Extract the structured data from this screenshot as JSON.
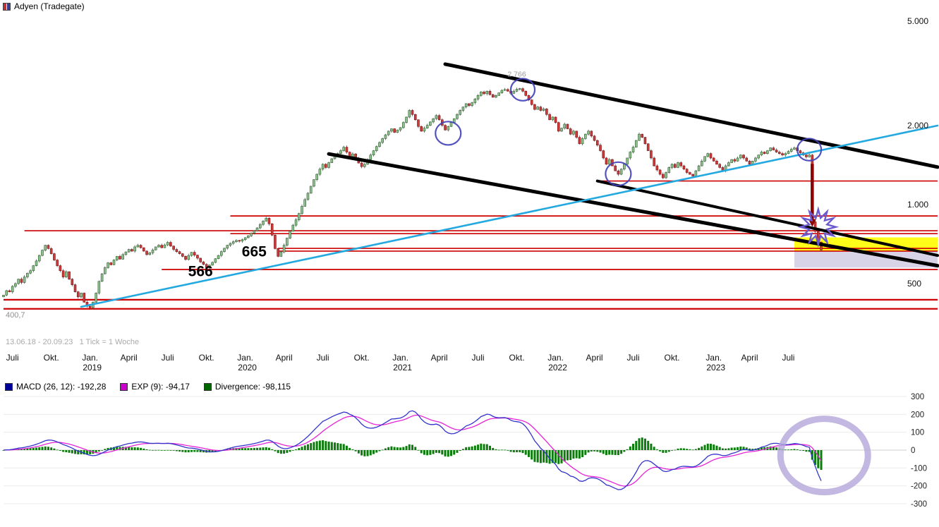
{
  "header": {
    "title": "Adyen (Tradegate)"
  },
  "price_chart": {
    "info_text": "13.06.18 - 20.09.23   1 Tick = 1 Woche",
    "marked_price_label": "400,7"
  },
  "chart_data": [
    {
      "type": "candlestick",
      "title": "Adyen (Tradegate)",
      "period": "13.06.18 - 20.09.23",
      "interval": "1 Tick = 1 Woche",
      "x_unit": "week_index_from_2018-06-13",
      "y_scale": "log",
      "y_ticks": [
        {
          "label": "5.000",
          "price": 5000
        },
        {
          "label": "2.000",
          "price": 2000
        },
        {
          "label": "1.000",
          "price": 1000
        },
        {
          "label": "500",
          "price": 500
        }
      ],
      "x_ticks": [
        {
          "label": "Juli",
          "week": 3
        },
        {
          "label": "Okt.",
          "week": 16
        },
        {
          "label": "Jan.",
          "week": 29,
          "year": "2019"
        },
        {
          "label": "April",
          "week": 42
        },
        {
          "label": "Juli",
          "week": 55
        },
        {
          "label": "Okt.",
          "week": 68
        },
        {
          "label": "Jan.",
          "week": 81,
          "year": "2020"
        },
        {
          "label": "April",
          "week": 94
        },
        {
          "label": "Juli",
          "week": 107
        },
        {
          "label": "Okt.",
          "week": 120
        },
        {
          "label": "Jan.",
          "week": 133,
          "year": "2021"
        },
        {
          "label": "April",
          "week": 146
        },
        {
          "label": "Juli",
          "week": 159
        },
        {
          "label": "Okt.",
          "week": 172
        },
        {
          "label": "Jan.",
          "week": 185,
          "year": "2022"
        },
        {
          "label": "April",
          "week": 198
        },
        {
          "label": "Juli",
          "week": 211
        },
        {
          "label": "Okt.",
          "week": 224
        },
        {
          "label": "Jan.",
          "week": 238,
          "year": "2023"
        },
        {
          "label": "April",
          "week": 250
        },
        {
          "label": "Juli",
          "week": 263
        }
      ],
      "weekly_closes": [
        452,
        470,
        465,
        488,
        500,
        520,
        505,
        530,
        548,
        560,
        585,
        610,
        640,
        670,
        700,
        680,
        650,
        615,
        585,
        560,
        530,
        555,
        520,
        495,
        465,
        445,
        460,
        425,
        410,
        405,
        425,
        460,
        510,
        545,
        575,
        600,
        590,
        615,
        635,
        620,
        645,
        660,
        675,
        665,
        690,
        700,
        685,
        665,
        645,
        655,
        672,
        690,
        700,
        685,
        702,
        718,
        695,
        675,
        662,
        650,
        635,
        618,
        640,
        658,
        642,
        625,
        605,
        592,
        575,
        588,
        602,
        622,
        640,
        662,
        682,
        700,
        712,
        722,
        730,
        726,
        735,
        748,
        760,
        778,
        795,
        815,
        840,
        865,
        888,
        845,
        765,
        680,
        635,
        660,
        700,
        745,
        792,
        835,
        875,
        925,
        985,
        1045,
        1105,
        1175,
        1245,
        1305,
        1365,
        1425,
        1385,
        1445,
        1495,
        1535,
        1565,
        1605,
        1655,
        1585,
        1525,
        1560,
        1500,
        1440,
        1395,
        1425,
        1485,
        1545,
        1605,
        1665,
        1725,
        1785,
        1845,
        1905,
        1945,
        1885,
        1925,
        1965,
        2055,
        2155,
        2285,
        2205,
        2105,
        1985,
        1905,
        1955,
        2005,
        2065,
        2125,
        2185,
        2105,
        2005,
        1925,
        1985,
        2055,
        2125,
        2205,
        2285,
        2355,
        2425,
        2385,
        2445,
        2525,
        2605,
        2685,
        2645,
        2705,
        2625,
        2565,
        2605,
        2665,
        2725,
        2745,
        2705,
        2655,
        2705,
        2755,
        2766,
        2705,
        2605,
        2505,
        2405,
        2305,
        2355,
        2285,
        2315,
        2205,
        2105,
        2155,
        2055,
        1905,
        1955,
        2025,
        1945,
        1855,
        1905,
        1805,
        1705,
        1785,
        1855,
        1905,
        1825,
        1755,
        1685,
        1605,
        1505,
        1425,
        1485,
        1405,
        1345,
        1305,
        1365,
        1425,
        1505,
        1585,
        1655,
        1755,
        1855,
        1805,
        1705,
        1605,
        1505,
        1405,
        1355,
        1305,
        1265,
        1325,
        1385,
        1425,
        1385,
        1445,
        1405,
        1365,
        1325,
        1305,
        1285,
        1345,
        1405,
        1465,
        1525,
        1565,
        1505,
        1465,
        1425,
        1385,
        1345,
        1405,
        1445,
        1485,
        1465,
        1505,
        1545,
        1505,
        1465,
        1425,
        1465,
        1505,
        1545,
        1585,
        1565,
        1605,
        1645,
        1615,
        1585,
        1565,
        1545,
        1565,
        1595,
        1625,
        1645,
        1605,
        1575,
        1545,
        1520,
        1545,
        860,
        790,
        720,
        672
      ],
      "all_time_high": 2766,
      "support_resistance_lines": [
        {
          "price": 1230,
          "from_week": 199
        },
        {
          "price": 905,
          "from_week": 76
        },
        {
          "price": 795,
          "from_week": 7
        },
        {
          "price": 775,
          "from_week": 76
        },
        {
          "price": 681,
          "from_week": 92
        },
        {
          "price": 665,
          "from_week": 92
        },
        {
          "price": 566,
          "from_week": 53
        },
        {
          "price": 434,
          "from_week": 0,
          "width": 2.2
        },
        {
          "price": 400.7,
          "from_week": 0,
          "width": 2.2,
          "label": "400,7"
        }
      ],
      "trendlines": [
        {
          "name": "descending-channel-top",
          "from": {
            "week": 148,
            "price": 3430
          },
          "to": {
            "week": 313,
            "price": 1390
          },
          "color": "#000000",
          "width": 5
        },
        {
          "name": "descending-channel-mid",
          "from": {
            "week": 109,
            "price": 1560
          },
          "to": {
            "week": 313,
            "price": 585
          },
          "color": "#000000",
          "width": 5
        },
        {
          "name": "descending-channel-low",
          "from": {
            "week": 199,
            "price": 1230
          },
          "to": {
            "week": 313,
            "price": 640
          },
          "color": "#000000",
          "width": 4
        },
        {
          "name": "ascending-support",
          "from": {
            "week": 26,
            "price": 408
          },
          "to": {
            "week": 313,
            "price": 2000
          },
          "color": "#23a8e0",
          "width": 2.6
        }
      ],
      "highlight_boxes": [
        {
          "from_week": 265,
          "to_week": 313,
          "price_top": 750,
          "price_bottom": 665,
          "color": "#ffff00",
          "opacity": 0.9
        },
        {
          "from_week": 265,
          "to_week": 313,
          "price_top": 665,
          "price_bottom": 575,
          "color": "#b9aed6",
          "opacity": 0.55
        }
      ],
      "circle_markers": [
        {
          "week": 149,
          "price": 1870,
          "r": 18
        },
        {
          "week": 174,
          "price": 2740,
          "r": 17
        },
        {
          "week": 206,
          "price": 1310,
          "r": 18
        },
        {
          "week": 270,
          "price": 1620,
          "r": 17
        }
      ],
      "star_marker": {
        "week": 273,
        "price": 822,
        "outer_r": 25,
        "inner_r": 13,
        "points": 12,
        "color": "#6a5acd"
      },
      "drop_arrow": {
        "week": 271,
        "from_price": 1430,
        "to_price": 880,
        "color": "#8b0000",
        "width": 4.5
      },
      "text_annotations": [
        {
          "text": "665",
          "week": 84,
          "price": 635,
          "size": 21,
          "bold": true,
          "color": "#000000"
        },
        {
          "text": "566",
          "week": 66,
          "price": 533,
          "size": 21,
          "bold": true,
          "color": "#000000"
        },
        {
          "text": "2.766",
          "week": 172,
          "price": 3080,
          "size": 10.5,
          "bold": false,
          "color": "#999999"
        }
      ],
      "colors": {
        "up": "#8fbf8f",
        "up_border": "#2f5f2f",
        "down": "#cc3b3b",
        "down_border": "#7c1414",
        "wick": "#555555",
        "level_lines": "#cc0000"
      }
    },
    {
      "type": "macd",
      "fast": 12,
      "slow": 26,
      "signal": 9,
      "computed_from": "chart_data[0].weekly_closes",
      "legend": [
        {
          "text": "MACD (26, 12): -192,28",
          "color": "#000099"
        },
        {
          "text": "EXP (9): -94,17",
          "color": "#cc00cc"
        },
        {
          "text": "Divergence: -98,115",
          "color": "#006600"
        }
      ],
      "y_ticks": [
        300,
        200,
        100,
        0,
        -100,
        -200,
        -300
      ],
      "highlight_circle": {
        "week": 275,
        "center_value": -30,
        "rx": 62,
        "ry": 52,
        "color": "#b3a6d9",
        "width": 9
      },
      "colors": {
        "macd_line": "#3333cc",
        "signal_line": "#e525d5",
        "histogram": "#0b7d0b"
      }
    }
  ]
}
